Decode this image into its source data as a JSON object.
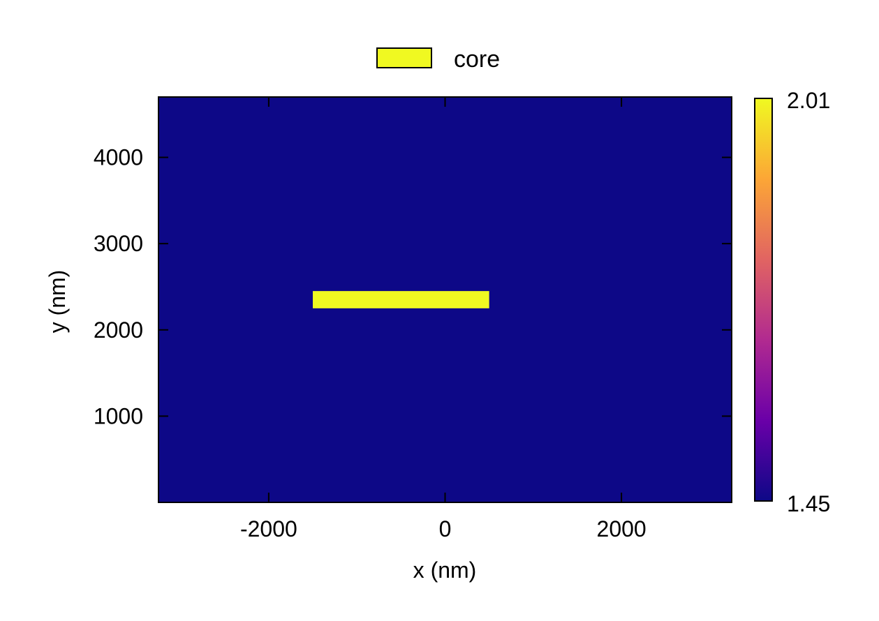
{
  "chart_data": {
    "type": "heatmap",
    "title": "",
    "xlabel": "x (nm)",
    "ylabel": "y (nm)",
    "xlim": [
      -3250,
      3250
    ],
    "ylim": [
      0,
      4700
    ],
    "xticks": [
      {
        "value": -2000,
        "label": "-2000"
      },
      {
        "value": 0,
        "label": "0"
      },
      {
        "value": 2000,
        "label": "2000"
      }
    ],
    "yticks": [
      {
        "value": 1000,
        "label": "1000"
      },
      {
        "value": 2000,
        "label": "2000"
      },
      {
        "value": 3000,
        "label": "3000"
      },
      {
        "value": 4000,
        "label": "4000"
      }
    ],
    "grid": false,
    "background": {
      "value": 1.45,
      "color": "#0d0887"
    },
    "regions": [
      {
        "name": "core",
        "x": [
          -1500,
          500
        ],
        "y": [
          2250,
          2450
        ],
        "value": 2.01,
        "color": "#f0f921"
      }
    ],
    "legend": {
      "position": "top-center",
      "entries": [
        {
          "label": "core",
          "color": "#f0f921"
        }
      ]
    },
    "colorbar": {
      "min": 1.45,
      "max": 2.01,
      "min_label": "1.45",
      "max_label": "2.01",
      "colormap": "plasma",
      "stops": [
        "#0d0887",
        "#6a00a8",
        "#b12a90",
        "#e16462",
        "#fca636",
        "#f0f921"
      ]
    }
  }
}
